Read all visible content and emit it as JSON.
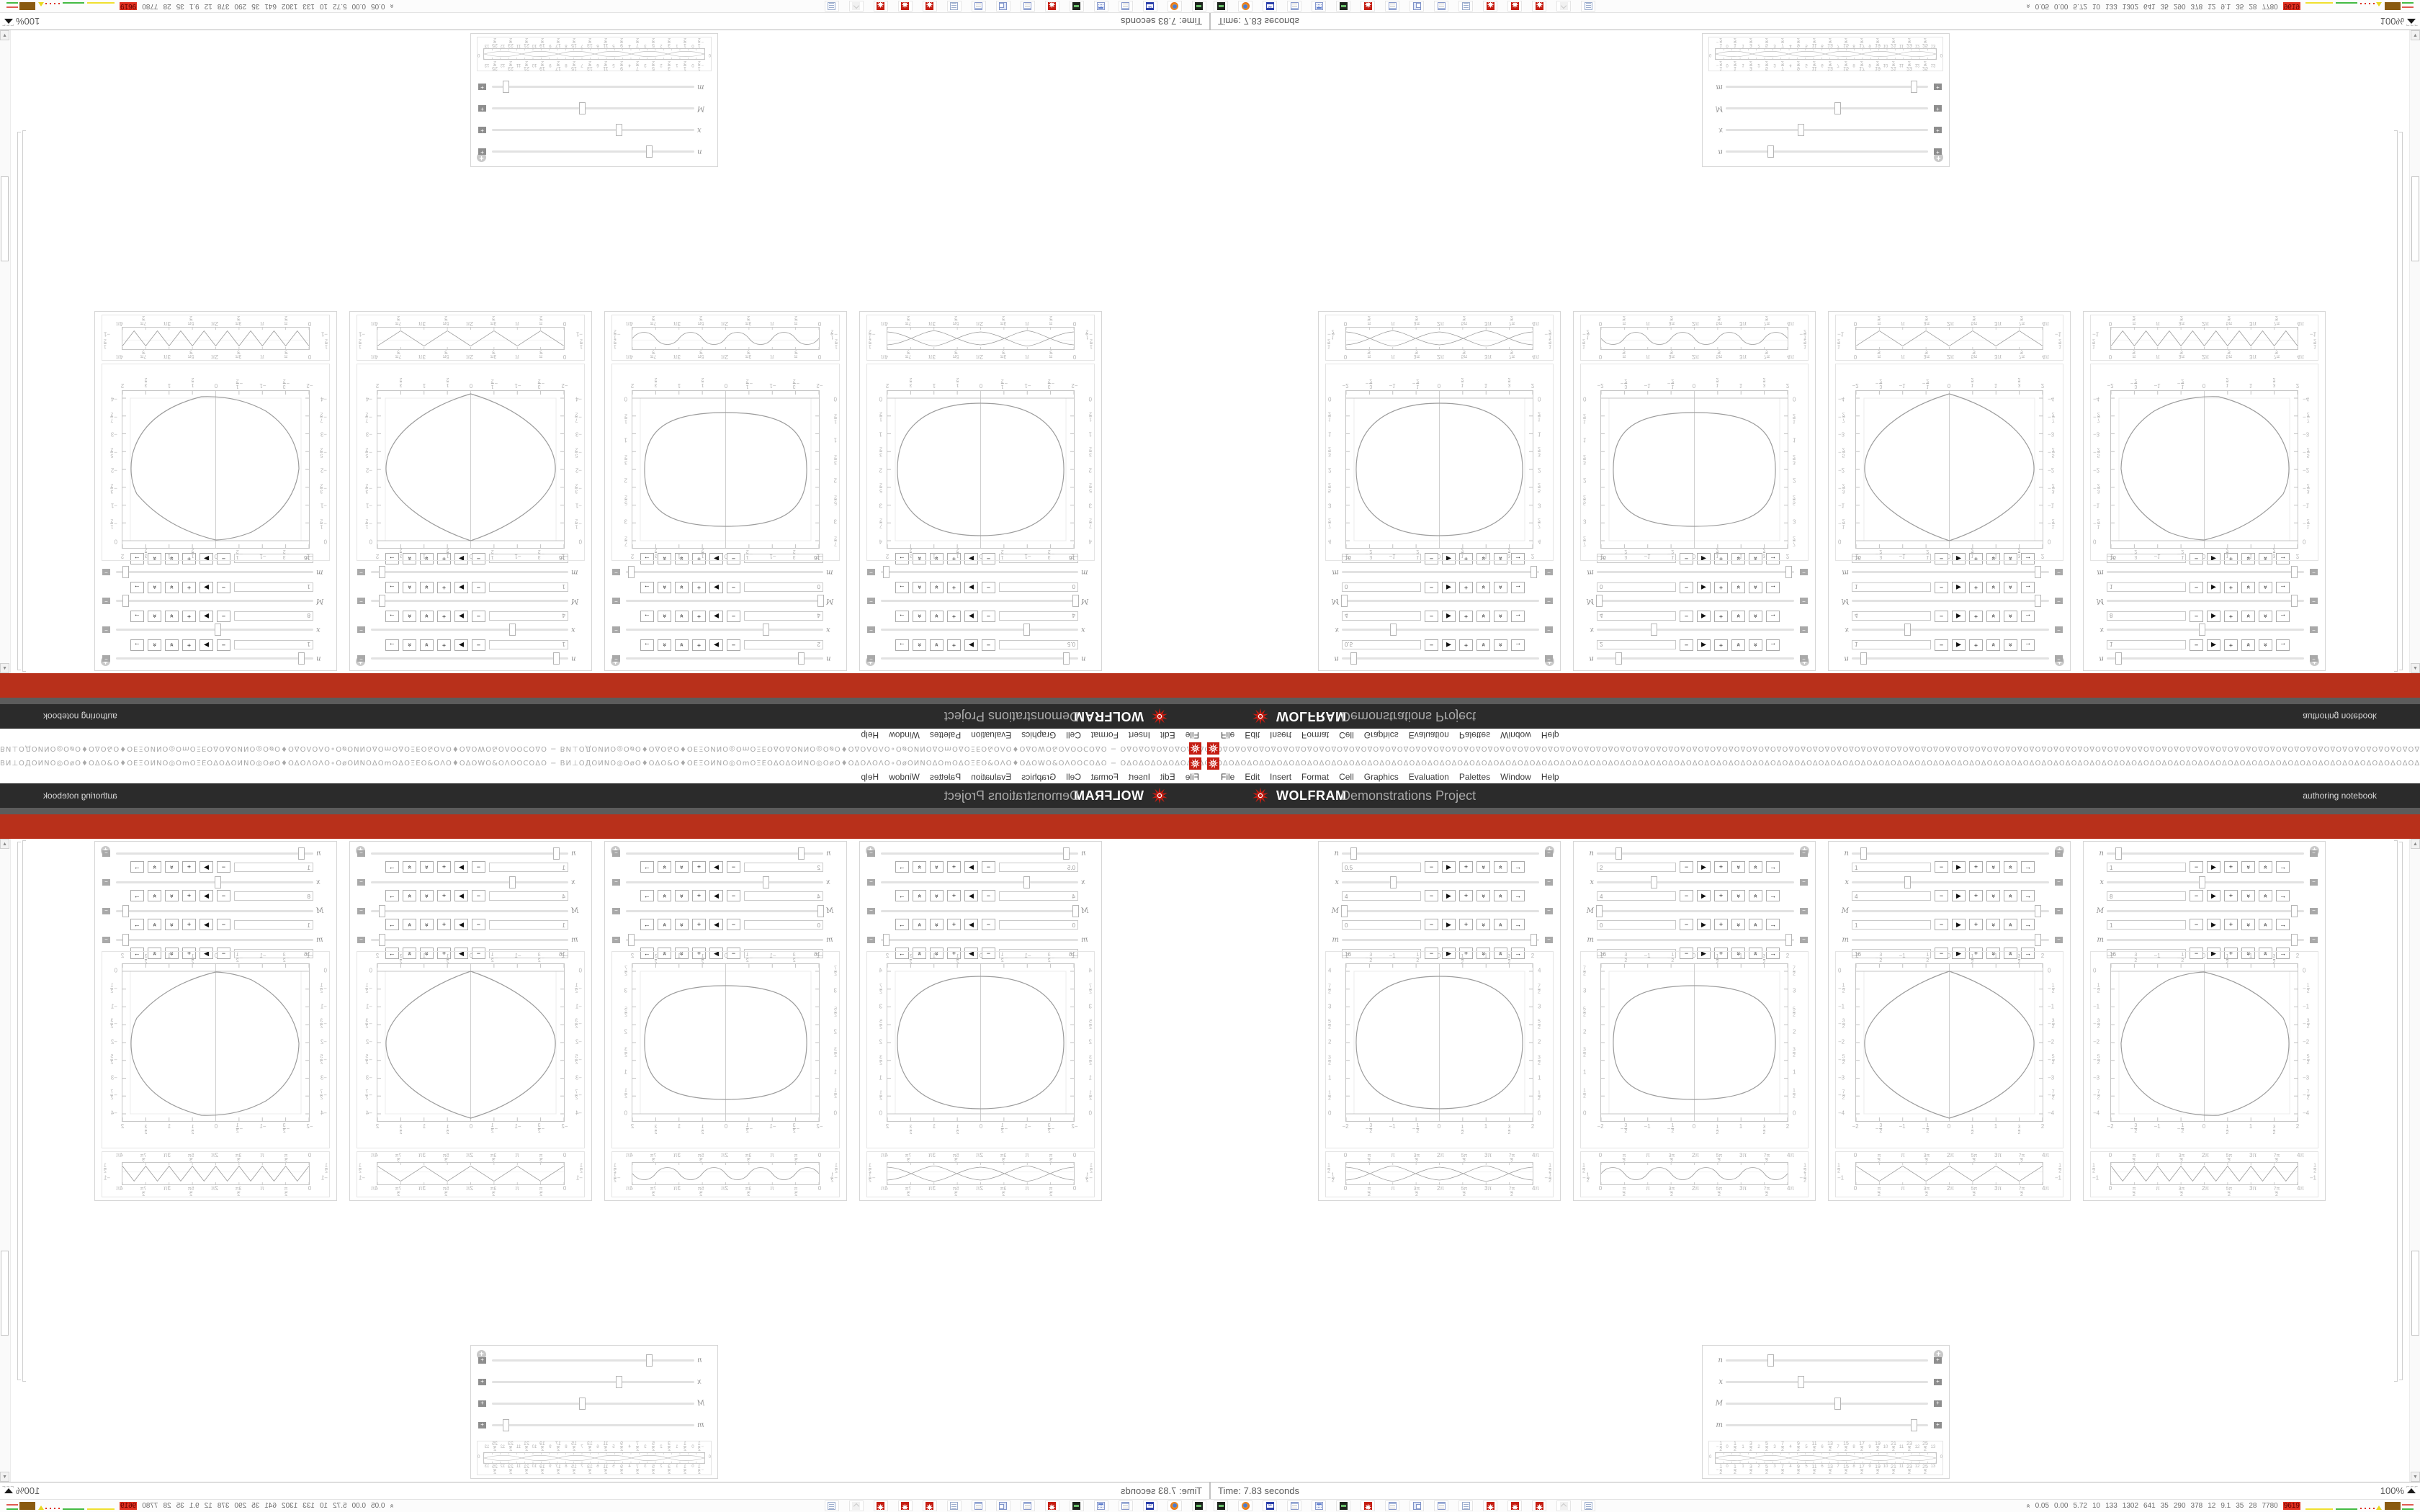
{
  "colors": {
    "red_bar": "#b8301b",
    "banner_bg": "#2b2b2b",
    "gray_strip": "#5c5c5c",
    "spikey_red": "#c51d12",
    "curve": "#9c9c9c",
    "frame": "#c6c6c6",
    "tick_label": "#b4b4b4"
  },
  "menu": {
    "items": [
      "File",
      "Edit",
      "Insert",
      "Format",
      "Cell",
      "Graphics",
      "Evaluation",
      "Palettes",
      "Window",
      "Help"
    ]
  },
  "banner": {
    "brand": "WOLFRAM",
    "product": "Demonstrations Project",
    "right_note": "authoring notebook",
    "logo_icon": "wolfram-spikey"
  },
  "seam": {
    "entry": "ВИ⊥ОДОИNО◎ОøО♦ОΔО&О♦ОΕΞОИNО◎ОmОΞΕОΔОΔОИNО◎ОøО♦ОΔОΛОΛО∘ОøОИNОΔОmОΔОΞΕО&ОΛО♦ОΔОWО&ОΛООСОΔО − ",
    "tail_unit": "ОΔ",
    "spikey_icon": "wolfram-spikey"
  },
  "status": {
    "time_text": "Time: 7.83 seconds",
    "zoom_text": "100%",
    "grip": "⌐⌐⌐"
  },
  "taskbar": {
    "icons": [
      "terminal-icon",
      "firefox-icon",
      "floppy-icon",
      "notepad-icon",
      "calculator-icon",
      "audio-icon",
      "mathematica-spikey-icon",
      "notepad-icon",
      "window-switcher-icon",
      "notepad-icon",
      "script-icon",
      "mathematica-spikey-icon",
      "mathematica-spikey-icon",
      "mathematica-spikey-icon",
      "ghost-icon",
      "document-icon"
    ],
    "sysmon": {
      "chevron": "«",
      "values": [
        "0.05",
        "0.00",
        "5.72",
        "10",
        "133",
        "1302",
        "641",
        "35",
        "290",
        "378",
        "12",
        "9.1",
        "35",
        "28",
        "7780"
      ],
      "highlight": "9619"
    }
  },
  "panels": [
    {
      "labels": [
        "n",
        "x",
        "M",
        "m"
      ],
      "values": [
        "0.5",
        "4",
        "0",
        "16"
      ],
      "thumbs": [
        6,
        26,
        1,
        97
      ],
      "collapse": "−",
      "buttons": [
        "−",
        "▶",
        "+",
        "«",
        "»",
        "→"
      ],
      "big": {
        "shape": "ellipse",
        "direction": "up",
        "xticks": [
          "−2",
          "−3/2",
          "−1",
          "−1/2",
          "0",
          "1/2",
          "1",
          "3/2",
          "2"
        ],
        "yticks": [
          "4",
          "7/2",
          "3",
          "5/2",
          "2",
          "3/2",
          "1",
          "1/2",
          "0"
        ]
      },
      "small": {
        "shape": "scallop",
        "xticks": [
          "0",
          "π/2",
          "π",
          "3π/2",
          "2π",
          "5π/2",
          "3π",
          "7π/2",
          "4π"
        ],
        "yticks": [
          "1/2",
          "0",
          "−1/2"
        ]
      }
    },
    {
      "labels": [
        "n",
        "x",
        "M",
        "m"
      ],
      "values": [
        "2",
        "4",
        "0",
        "16"
      ],
      "thumbs": [
        11,
        29,
        1,
        97
      ],
      "collapse": "−",
      "buttons": [
        "−",
        "▶",
        "+",
        "«",
        "»",
        "→"
      ],
      "big": {
        "shape": "roundsquare",
        "direction": "up",
        "xticks": [
          "−2",
          "−3/2",
          "−1",
          "−1/2",
          "0",
          "1/2",
          "1",
          "3/2",
          "2"
        ],
        "yticks": [
          "7/2",
          "3",
          "5/2",
          "2",
          "3/2",
          "1",
          "1/2",
          "0"
        ]
      },
      "small": {
        "shape": "roundwave",
        "xticks": [
          "0",
          "π/2",
          "π",
          "3π/2",
          "2π",
          "5π/2",
          "3π",
          "7π/2",
          "4π"
        ],
        "yticks": [
          "1/2",
          "0",
          "−1/2"
        ]
      }
    },
    {
      "labels": [
        "n",
        "x",
        "M",
        "m"
      ],
      "values": [
        "1",
        "4",
        "1",
        "16"
      ],
      "thumbs": [
        6,
        28,
        94,
        94
      ],
      "collapse": "−",
      "buttons": [
        "−",
        "▶",
        "+",
        "«",
        "»",
        "→"
      ],
      "big": {
        "shape": "pointedoval",
        "direction": "down",
        "xticks": [
          "−2",
          "−3/2",
          "−1",
          "−1/2",
          "0",
          "1/2",
          "1",
          "3/2",
          "2"
        ],
        "yticks": [
          "0",
          "−1/2",
          "−1",
          "−3/2",
          "−2",
          "−5/2",
          "−3",
          "−7/2",
          "−4"
        ]
      },
      "small": {
        "shape": "zigzag",
        "period": 75,
        "xticks": [
          "0",
          "π/2",
          "π",
          "3π/2",
          "2π",
          "5π/2",
          "3π",
          "7π/2",
          "4π"
        ],
        "yticks": [
          "1/2",
          "0",
          "−1"
        ]
      }
    },
    {
      "labels": [
        "n",
        "x",
        "M",
        "m"
      ],
      "values": [
        "1",
        "8",
        "1",
        "16"
      ],
      "thumbs": [
        6,
        48,
        95,
        95
      ],
      "collapse": "−",
      "buttons": [
        "−",
        "▶",
        "+",
        "«",
        "»",
        "→"
      ],
      "big": {
        "shape": "wavyblob",
        "direction": "down",
        "xticks": [
          "−2",
          "−3/2",
          "−1",
          "−1/2",
          "0",
          "1/2",
          "1",
          "3/2",
          "2"
        ],
        "yticks": [
          "0",
          "−1/2",
          "−1",
          "−3/2",
          "−2",
          "−5/2",
          "−3",
          "−7/2",
          "−4"
        ]
      },
      "small": {
        "shape": "zigzag",
        "period": 37.5,
        "xticks": [
          "0",
          "π/2",
          "π",
          "3π/2",
          "2π",
          "5π/2",
          "3π",
          "7π/2",
          "4π"
        ],
        "yticks": [
          "1/2",
          "0",
          "−1"
        ]
      }
    }
  ],
  "mini_panel": {
    "labels": [
      "n",
      "x",
      "M",
      "m"
    ],
    "thumbs": [
      22,
      37,
      55,
      93
    ],
    "expand": "+",
    "plot": {
      "fracs": [
        "−1/2",
        "1/2",
        "3/2",
        "5/2",
        "7/2",
        "9/2",
        "11/2",
        "13/2",
        "15/2",
        "17/2",
        "19/2",
        "21/2",
        "23/2",
        "25/2"
      ],
      "ints": [
        "0",
        "1",
        "2",
        "3",
        "4",
        "5",
        "6",
        "7",
        "8",
        "9",
        "10",
        "11",
        "12",
        "13"
      ],
      "end_labels": [
        "0",
        "0"
      ]
    }
  }
}
